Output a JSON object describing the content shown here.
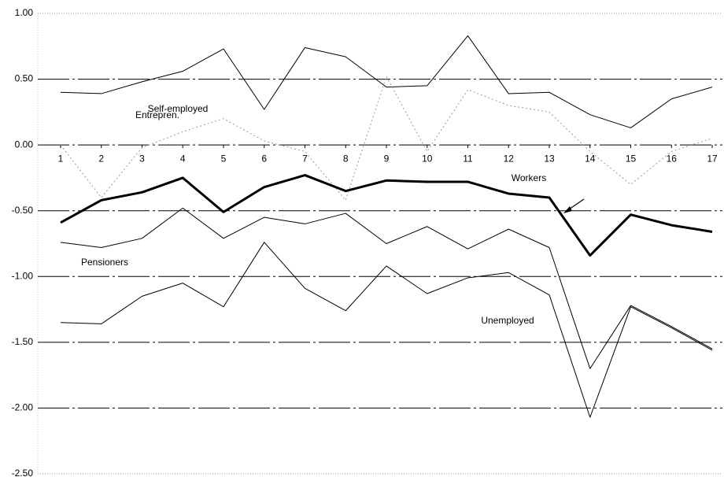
{
  "chart_data": {
    "type": "line",
    "categories": [
      "1",
      "2",
      "3",
      "4",
      "5",
      "6",
      "7",
      "8",
      "9",
      "10",
      "11",
      "12",
      "13",
      "14",
      "15",
      "16",
      "17"
    ],
    "ylim": [
      -2.5,
      1.0
    ],
    "yticks": [
      {
        "value": -2.5,
        "label": "-2.50"
      },
      {
        "value": -2.0,
        "label": "-2.00"
      },
      {
        "value": -1.5,
        "label": "-1.50"
      },
      {
        "value": -1.0,
        "label": "-1.00"
      },
      {
        "value": -0.5,
        "label": "-0.50"
      },
      {
        "value": 0,
        "label": "0.00"
      },
      {
        "value": 0.5,
        "label": "0.50"
      },
      {
        "value": 1.0,
        "label": "1.00"
      }
    ],
    "grid": true,
    "series": [
      {
        "name": "Entrepren.",
        "color": "#000000",
        "line_width": 1,
        "style": "solid",
        "values": [
          0.4,
          0.39,
          0.48,
          0.56,
          0.73,
          0.27,
          0.74,
          0.67,
          0.44,
          0.45,
          0.83,
          0.39,
          0.4,
          0.23,
          0.13,
          0.35,
          0.44
        ]
      },
      {
        "name": "Self-employed",
        "color": "#999999",
        "line_width": 1,
        "style": "dotted",
        "values": [
          0.0,
          -0.4,
          -0.02,
          0.1,
          0.2,
          0.03,
          -0.05,
          -0.42,
          0.52,
          -0.05,
          0.42,
          0.3,
          0.25,
          -0.05,
          -0.3,
          -0.05,
          0.05
        ]
      },
      {
        "name": "Workers",
        "color": "#000000",
        "line_width": 3,
        "style": "solid",
        "values": [
          -0.59,
          -0.42,
          -0.36,
          -0.25,
          -0.51,
          -0.32,
          -0.23,
          -0.35,
          -0.27,
          -0.28,
          -0.28,
          -0.37,
          -0.4,
          -0.84,
          -0.53,
          -0.61,
          -0.66
        ]
      },
      {
        "name": "Pensioners",
        "color": "#000000",
        "line_width": 1,
        "style": "solid",
        "values": [
          -0.74,
          -0.78,
          -0.71,
          -0.48,
          -0.71,
          -0.55,
          -0.6,
          -0.52,
          -0.75,
          -0.62,
          -0.79,
          -0.64,
          -0.78,
          -1.7,
          -1.22,
          -1.38,
          -1.55
        ]
      },
      {
        "name": "Unemployed",
        "color": "#000000",
        "line_width": 1,
        "style": "solid",
        "values": [
          -1.35,
          -1.36,
          -1.15,
          -1.05,
          -1.23,
          -0.74,
          -1.09,
          -1.26,
          -0.92,
          -1.13,
          -1.01,
          -0.97,
          -1.14,
          -2.07,
          -1.23,
          -1.39,
          -1.56
        ]
      }
    ]
  }
}
